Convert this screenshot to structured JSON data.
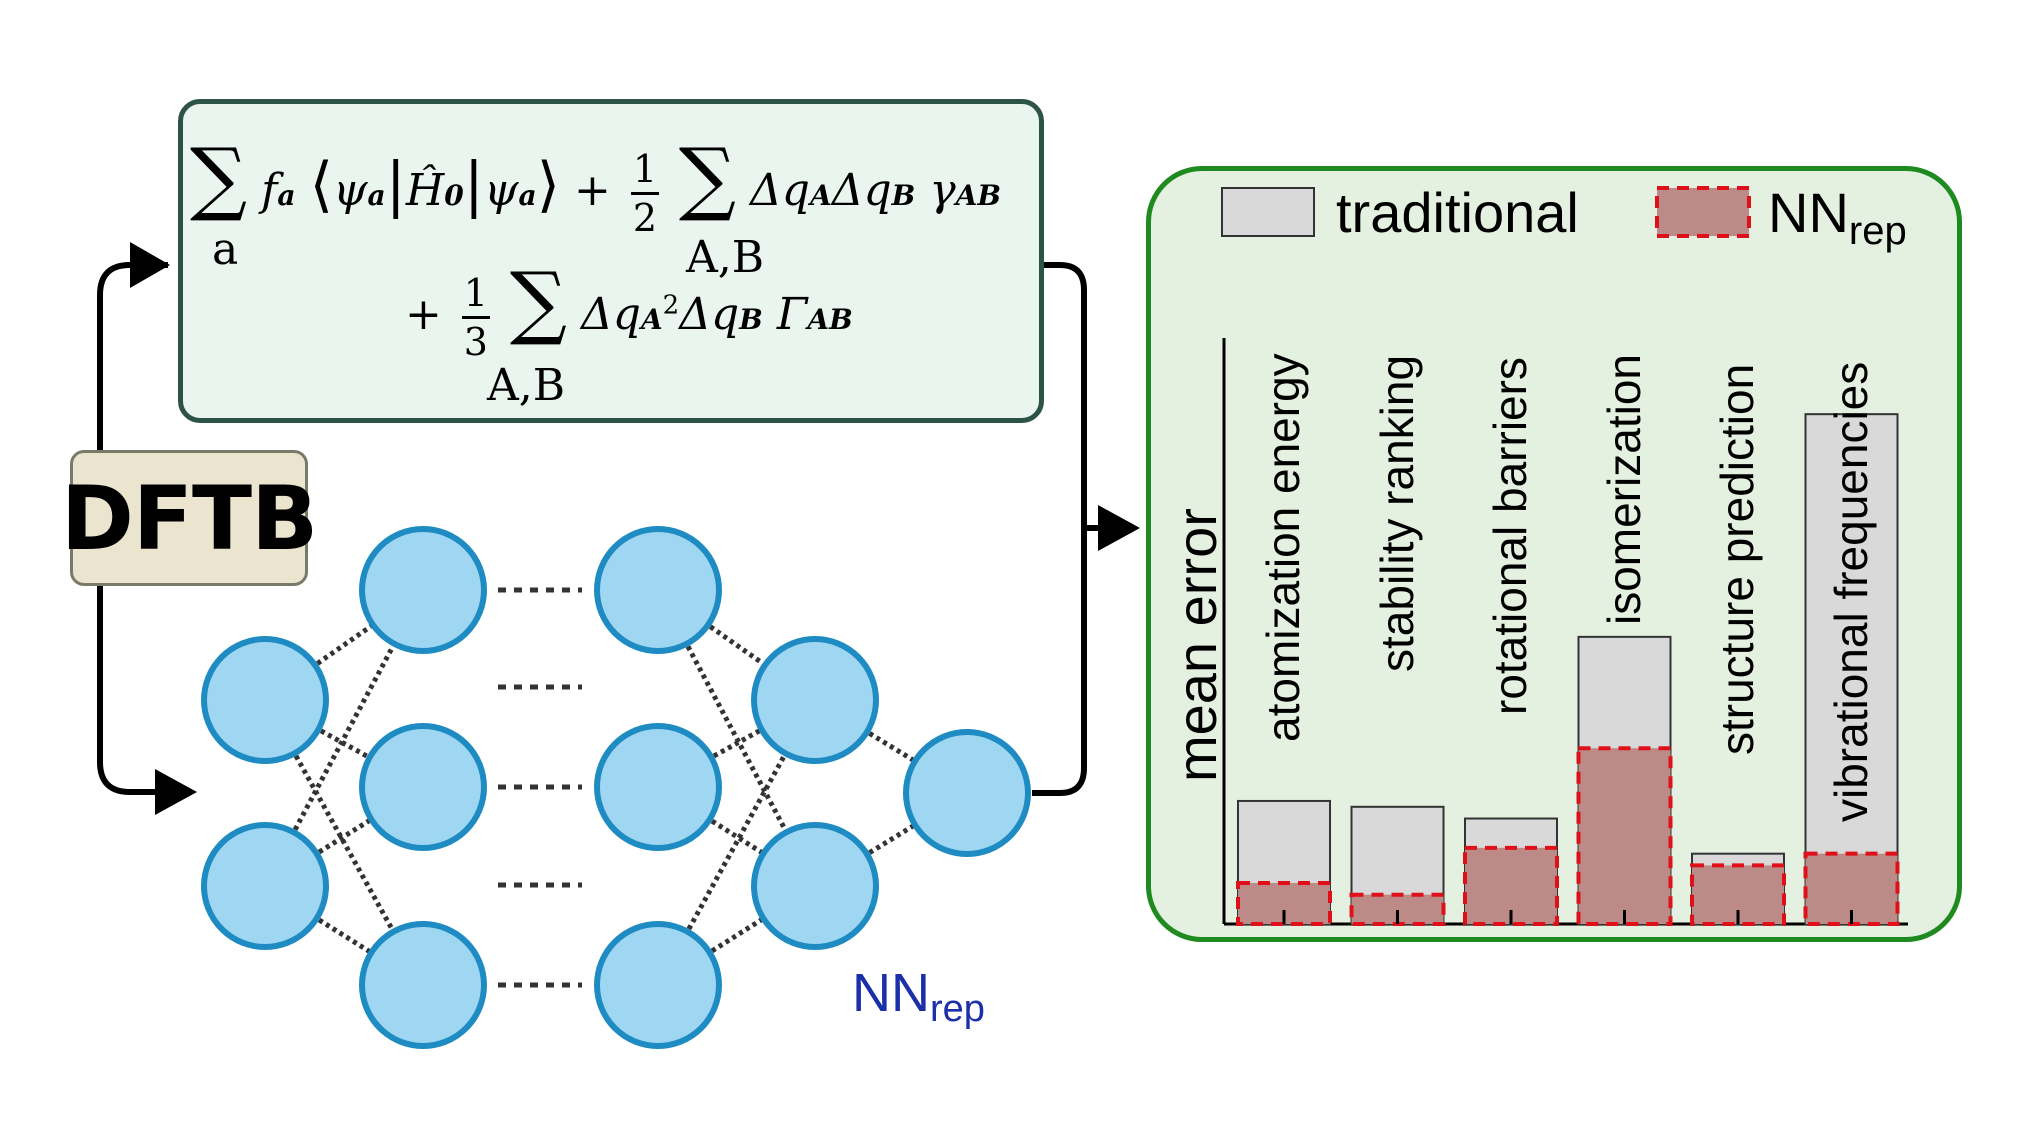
{
  "equation": {
    "line1_term1": "f",
    "line1_bra": "ψ",
    "line1_op": "Ĥ",
    "line1_op_sub": "0",
    "line1_ket": "ψ",
    "line1_term2": "Δq",
    "line1_gamma": "γ",
    "line1_gamma_sub": "AB",
    "sum_index_a": "a",
    "sum_index_AB": "A,B",
    "frac1_num": "1",
    "frac1_den": "2",
    "frac2_num": "1",
    "frac2_den": "3",
    "line2_Gamma": "Γ",
    "line2_Gamma_sub": "AB"
  },
  "dftb_label": "DFTB",
  "nn_label": {
    "main": "NN",
    "sub": "rep"
  },
  "legend": {
    "traditional": "traditional",
    "nn_main": "NN",
    "nn_sub": "rep"
  },
  "colors": {
    "node_fill": "#9fd6f2",
    "node_stroke": "#1e8bc3",
    "traditional_fill": "#d9d9d9",
    "nn_fill": "#bc8a87",
    "nn_stroke": "#e0101a",
    "chart_border": "#1f8a1f",
    "chart_bg": "#e4f1e1"
  },
  "chart_data": {
    "type": "bar",
    "ylabel": "mean error",
    "categories": [
      "atomization energy",
      "stability ranking",
      "rotational barriers",
      "isomerization",
      "structure prediction",
      "vibrational frequencies"
    ],
    "series": [
      {
        "name": "traditional",
        "values": [
          0.21,
          0.2,
          0.18,
          0.49,
          0.12,
          0.87
        ]
      },
      {
        "name": "NNrep",
        "values": [
          0.07,
          0.05,
          0.13,
          0.3,
          0.1,
          0.12
        ]
      }
    ],
    "ylim": [
      0,
      1
    ],
    "grid": false,
    "legend_position": "top"
  }
}
